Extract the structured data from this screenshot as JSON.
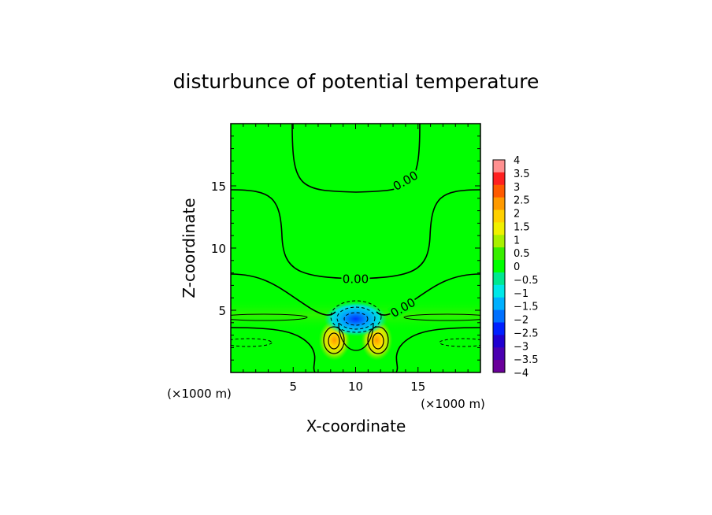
{
  "chart_data": {
    "type": "heatmap",
    "title": "disturbunce of potential temperature",
    "xlabel": "X-coordinate",
    "ylabel": "Z-coordinate",
    "x_unit": "(×1000 m)",
    "y_unit": "(×1000 m)",
    "xlim": [
      0,
      20
    ],
    "ylim": [
      0,
      20
    ],
    "x_ticks": [
      5,
      10,
      15
    ],
    "y_ticks": [
      5,
      10,
      15
    ],
    "contour_labels": [
      {
        "text": "0.00",
        "x": 14.0,
        "y": 15.4,
        "angle": -30
      },
      {
        "text": "0.00",
        "x": 10.0,
        "y": 7.5,
        "angle": 0
      },
      {
        "text": "0.00",
        "x": 13.8,
        "y": 5.2,
        "angle": -30
      }
    ],
    "colorbar": {
      "min": -4,
      "max": 4,
      "ticks": [
        "4",
        "3.5",
        "3",
        "2.5",
        "2",
        "1.5",
        "1",
        "0.5",
        "0",
        "−0.5",
        "−1",
        "−1.5",
        "−2",
        "−2.5",
        "−3",
        "−3.5",
        "−4"
      ],
      "colors": [
        "#ff9090",
        "#ff2020",
        "#ff5a00",
        "#ff9a00",
        "#ffd000",
        "#f0f000",
        "#a8f000",
        "#38ee00",
        "#00ff00",
        "#00e890",
        "#00e8e8",
        "#00b0ff",
        "#0070ff",
        "#0020ff",
        "#2000d0",
        "#4a00b0",
        "#6a009a"
      ]
    },
    "features": [
      {
        "kind": "warm",
        "x": 8.3,
        "y": 2.6,
        "value": 2.0
      },
      {
        "kind": "warm",
        "x": 11.7,
        "y": 2.6,
        "value": 2.0
      },
      {
        "kind": "cold",
        "x": 10.0,
        "y": 4.3,
        "value": -3.0
      }
    ]
  }
}
